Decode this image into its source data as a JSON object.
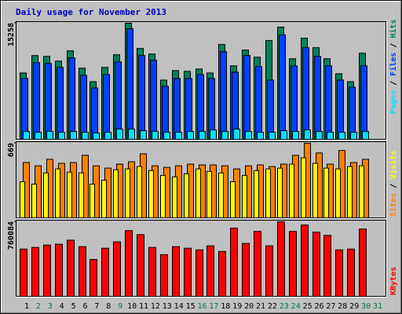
{
  "chart_data": [
    {
      "type": "bar",
      "title": "Daily usage for November 2013",
      "ylim": [
        0,
        15258
      ],
      "yticks": [
        15258
      ],
      "legend_separator": " / ",
      "series": [
        {
          "name": "Hits",
          "color": "#00805c",
          "values": [
            8719,
            11003,
            10899,
            10276,
            11626,
            9342,
            7577,
            9446,
            11107,
            15258,
            11937,
            11210,
            7785,
            9031,
            8927,
            9238,
            8719,
            12456,
            9653,
            11729,
            10795,
            12975,
            14740,
            10588,
            13286,
            12041,
            10588,
            8615,
            7577,
            11314,
            null
          ]
        },
        {
          "name": "Files",
          "color": "#0040ff",
          "values": [
            7993,
            10069,
            9965,
            9446,
            10691,
            8408,
            6747,
            8512,
            10172,
            14532,
            11003,
            10380,
            6955,
            7993,
            7993,
            8512,
            7993,
            11522,
            8823,
            11003,
            9550,
            7785,
            13702,
            9653,
            12041,
            10899,
            9653,
            7785,
            6851,
            9653,
            null
          ]
        },
        {
          "name": "Pages",
          "color": "#00e0ff",
          "values": [
            1038,
            934,
            1038,
            934,
            1038,
            934,
            830,
            934,
            1349,
            1349,
            1142,
            1038,
            934,
            934,
            1038,
            1038,
            1245,
            1038,
            1349,
            1038,
            934,
            934,
            1142,
            1038,
            1245,
            1038,
            934,
            934,
            934,
            1038,
            null
          ]
        }
      ]
    },
    {
      "type": "bar",
      "ylim": [
        0,
        669
      ],
      "yticks": [
        669
      ],
      "legend_separator": " / ",
      "series": [
        {
          "name": "Visits",
          "color": "#ffff00",
          "values": [
            324,
            302,
            403,
            439,
            410,
            403,
            302,
            338,
            431,
            439,
            460,
            424,
            381,
            367,
            395,
            439,
            417,
            403,
            324,
            381,
            424,
            439,
            446,
            482,
            539,
            489,
            446,
            439,
            460,
            467,
            null
          ]
        },
        {
          "name": "Sites",
          "color": "#ff8000",
          "values": [
            496,
            467,
            525,
            489,
            496,
            561,
            467,
            446,
            482,
            503,
            575,
            467,
            453,
            467,
            482,
            475,
            475,
            467,
            439,
            467,
            475,
            460,
            482,
            561,
            669,
            582,
            482,
            604,
            496,
            525,
            null
          ]
        }
      ]
    },
    {
      "type": "bar",
      "ylim": [
        0,
        760084
      ],
      "yticks": [
        760084
      ],
      "categories": [
        "1",
        "2",
        "3",
        "4",
        "5",
        "6",
        "7",
        "8",
        "9",
        "10",
        "11",
        "12",
        "13",
        "14",
        "15",
        "16",
        "17",
        "18",
        "19",
        "20",
        "21",
        "22",
        "23",
        "24",
        "25",
        "26",
        "27",
        "28",
        "29",
        "30",
        "31"
      ],
      "category_colors": [
        "#000000",
        "#008040",
        "#008040",
        "#000000",
        "#000000",
        "#000000",
        "#000000",
        "#000000",
        "#008040",
        "#000000",
        "#000000",
        "#000000",
        "#000000",
        "#000000",
        "#000000",
        "#008040",
        "#008040",
        "#000000",
        "#000000",
        "#000000",
        "#000000",
        "#000000",
        "#008040",
        "#008040",
        "#000000",
        "#000000",
        "#000000",
        "#000000",
        "#000000",
        "#008040",
        "#008040"
      ],
      "series": [
        {
          "name": "KBytes",
          "color": "#ff0000",
          "values": [
            482207,
            498553,
            523072,
            531245,
            572110,
            506726,
            375958,
            490380,
            555764,
            670186,
            629321,
            498553,
            424996,
            506726,
            490380,
            474034,
            514899,
            457688,
            694705,
            539418,
            662013,
            514899,
            760084,
            662013,
            727397,
            653840,
            621148,
            474034,
            482207,
            686532,
            null
          ]
        }
      ]
    }
  ]
}
